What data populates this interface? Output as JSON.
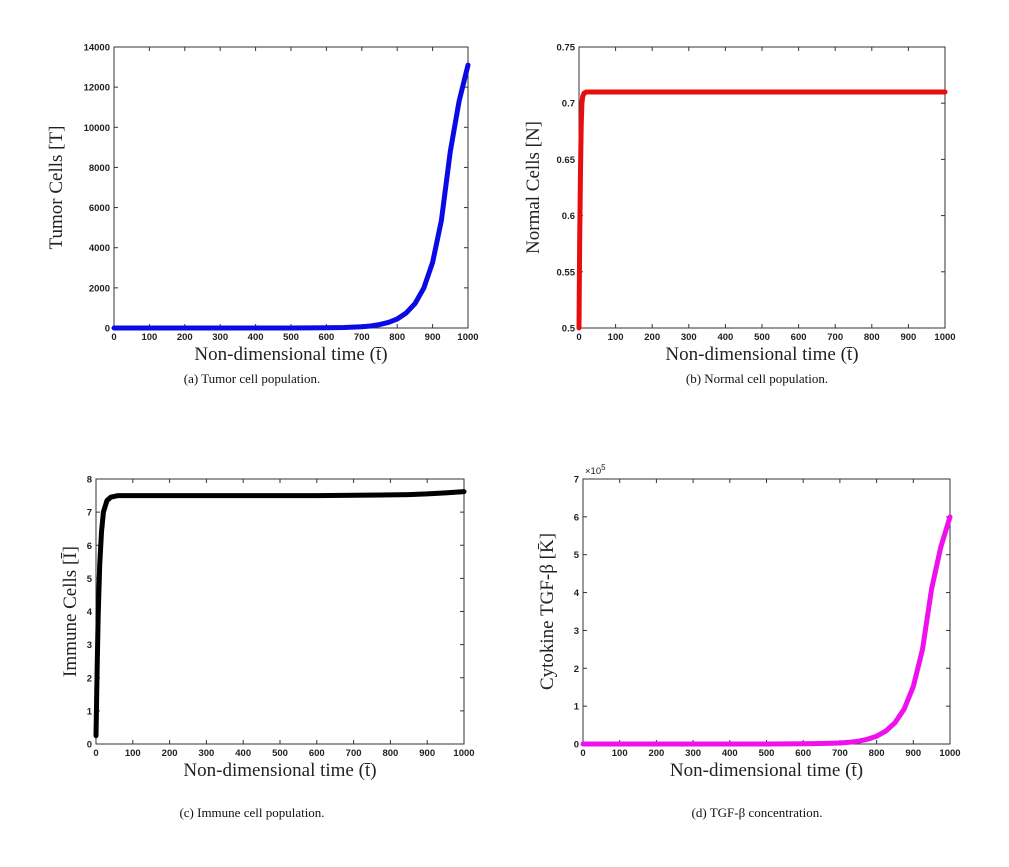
{
  "chart_data": [
    {
      "type": "line",
      "xlabel": "Non-dimensional time (t̄)",
      "ylabel": "Tumor Cells [T]",
      "caption": "(a) Tumor cell population.",
      "xlim": [
        0,
        1000
      ],
      "ylim": [
        0,
        14000
      ],
      "x_ticks": [
        "0",
        "100",
        "200",
        "300",
        "400",
        "500",
        "600",
        "700",
        "800",
        "900",
        "1000"
      ],
      "y_ticks": [
        "0",
        "2000",
        "4000",
        "6000",
        "8000",
        "10000",
        "12000",
        "14000"
      ],
      "series": [
        {
          "color": "#0a0ae6",
          "x": [
            0,
            100,
            200,
            300,
            400,
            500,
            600,
            650,
            700,
            725,
            750,
            775,
            800,
            825,
            850,
            875,
            900,
            925,
            950,
            975,
            1000
          ],
          "y": [
            0,
            0,
            0,
            0,
            0,
            0,
            10,
            25,
            60,
            100,
            170,
            280,
            450,
            740,
            1210,
            1990,
            3270,
            5360,
            8800,
            11300,
            13100
          ]
        }
      ]
    },
    {
      "type": "line",
      "xlabel": "Non-dimensional time (t̄)",
      "ylabel": "Normal Cells [N]",
      "caption": "(b) Normal cell population.",
      "xlim": [
        0,
        1000
      ],
      "ylim": [
        0.5,
        0.75
      ],
      "x_ticks": [
        "0",
        "100",
        "200",
        "300",
        "400",
        "500",
        "600",
        "700",
        "800",
        "900",
        "1000"
      ],
      "y_ticks": [
        "0.5",
        "0.55",
        "0.6",
        "0.65",
        "0.7",
        "0.75"
      ],
      "series": [
        {
          "color": "#e60f0f",
          "x": [
            0,
            2,
            4,
            6,
            8,
            10,
            14,
            20,
            50,
            200,
            400,
            600,
            800,
            1000
          ],
          "y": [
            0.5,
            0.58,
            0.64,
            0.68,
            0.7,
            0.706,
            0.709,
            0.71,
            0.71,
            0.71,
            0.71,
            0.71,
            0.71,
            0.71
          ]
        }
      ]
    },
    {
      "type": "line",
      "xlabel": "Non-dimensional time (t̄)",
      "ylabel": "Immune Cells [Ī]",
      "caption": "(c) Immune cell population.",
      "xlim": [
        0,
        1000
      ],
      "ylim": [
        0,
        8
      ],
      "x_ticks": [
        "0",
        "100",
        "200",
        "300",
        "400",
        "500",
        "600",
        "700",
        "800",
        "900",
        "1000"
      ],
      "y_ticks": [
        "0",
        "1",
        "2",
        "3",
        "4",
        "5",
        "6",
        "7",
        "8"
      ],
      "series": [
        {
          "color": "#000000",
          "x": [
            0,
            3,
            6,
            10,
            15,
            20,
            30,
            40,
            60,
            100,
            200,
            400,
            600,
            800,
            850,
            900,
            950,
            1000
          ],
          "y": [
            0.25,
            2.2,
            3.9,
            5.4,
            6.4,
            7.0,
            7.35,
            7.45,
            7.5,
            7.5,
            7.5,
            7.5,
            7.5,
            7.52,
            7.53,
            7.55,
            7.58,
            7.62
          ]
        }
      ]
    },
    {
      "type": "line",
      "xlabel": "Non-dimensional time (t̄)",
      "ylabel": "Cytokine TGF-β [K̄]",
      "caption": "(d) TGF-β concentration.",
      "xlim": [
        0,
        1000
      ],
      "ylim": [
        0,
        700000
      ],
      "y_scale_label": "×10",
      "y_scale_exponent": "5",
      "x_ticks": [
        "0",
        "100",
        "200",
        "300",
        "400",
        "500",
        "600",
        "700",
        "800",
        "900",
        "1000"
      ],
      "y_ticks": [
        "0",
        "1",
        "2",
        "3",
        "4",
        "5",
        "6",
        "7"
      ],
      "series": [
        {
          "color": "#ee11ee",
          "x": [
            0,
            100,
            200,
            300,
            400,
            500,
            600,
            650,
            700,
            725,
            750,
            775,
            800,
            825,
            850,
            875,
            900,
            925,
            950,
            975,
            1000
          ],
          "y": [
            0,
            0,
            0,
            0,
            0,
            0,
            500,
            1200,
            2700,
            4500,
            7500,
            12500,
            20500,
            34000,
            56000,
            92000,
            152000,
            250000,
            410000,
            520000,
            600000
          ]
        }
      ]
    }
  ]
}
